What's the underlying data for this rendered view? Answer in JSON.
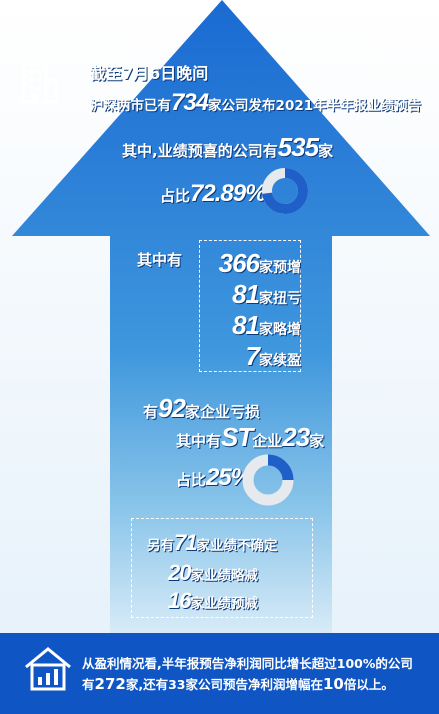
{
  "header": {
    "line1": "截至7月6日晚间",
    "line2_pre": "沪深两市已有",
    "line2_num": "734",
    "line2_post": "家公司发布2021年半年报业绩预告"
  },
  "positive": {
    "pre": "其中,业绩预喜的公司有",
    "num": "535",
    "post": "家",
    "ratio_label": "占比",
    "ratio_value": "72.89%",
    "ratio": 0.7289
  },
  "breakdown": {
    "label": "其中有",
    "items": [
      {
        "num": "366",
        "text": "家预增"
      },
      {
        "num": "81",
        "text": "家扭亏"
      },
      {
        "num": "81",
        "text": "家略增"
      },
      {
        "num": "7",
        "text": "家续盈"
      }
    ]
  },
  "loss": {
    "pre": "有",
    "num": "92",
    "post": "家企业亏损",
    "st_pre": "其中有",
    "st_word": "ST",
    "st_mid": "企业",
    "st_num": "23",
    "st_post": "家",
    "ratio_label": "占比",
    "ratio_value": "25%",
    "ratio": 0.25
  },
  "uncertain": {
    "items": [
      {
        "pre": "另有",
        "num": "71",
        "text": "家业绩不确定"
      },
      {
        "pre": "",
        "num": "20",
        "text": "家业绩略减"
      },
      {
        "pre": "",
        "num": "16",
        "text": "家业绩预减"
      }
    ]
  },
  "footer": {
    "line1": "从盈利情况看,半年报预告净利润同比增长超过100%的公司",
    "line2_pre": "有",
    "line2_num": "272",
    "line2_mid": "家,还有33家公司预告净利润增幅在",
    "line2_num2": "10",
    "line2_post": "倍以上。"
  },
  "colors": {
    "arrow_top": "#1f73d6",
    "arrow_bottom": "#d6ebf7",
    "footer": "#0f56c4",
    "donut_track": "#e6e9ee",
    "donut_fill": "#1f5fc8"
  },
  "icons": [
    "building-icon",
    "house-chart-icon"
  ]
}
